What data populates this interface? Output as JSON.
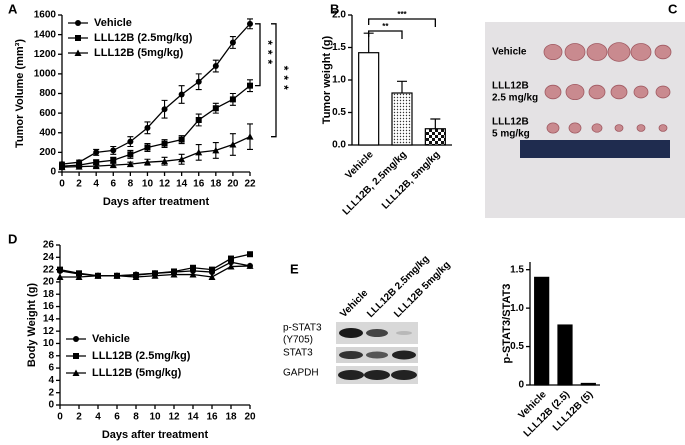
{
  "chart_data": [
    {
      "type": "line",
      "panel": "A",
      "xlabel": "Days after treatment",
      "ylabel": "Tumor Volume (mm³)",
      "x": [
        0,
        2,
        4,
        6,
        8,
        10,
        12,
        14,
        16,
        18,
        20,
        22
      ],
      "xlim": [
        0,
        22
      ],
      "xticks": [
        0,
        2,
        4,
        6,
        8,
        10,
        12,
        14,
        16,
        18,
        20,
        22
      ],
      "ylim": [
        0,
        1600
      ],
      "yticks": [
        0,
        200,
        400,
        600,
        800,
        1000,
        1200,
        1400,
        1600
      ],
      "legend": "upper left",
      "series": [
        {
          "name": "Vehicle",
          "marker": "circle",
          "color": "#000000",
          "values": [
            80,
            100,
            200,
            220,
            310,
            450,
            640,
            790,
            920,
            1080,
            1320,
            1510
          ],
          "errors": [
            20,
            20,
            30,
            40,
            50,
            60,
            90,
            90,
            80,
            60,
            60,
            50
          ]
        },
        {
          "name": "LLL12B (2.5mg/kg)",
          "marker": "square",
          "color": "#000000",
          "values": [
            60,
            70,
            100,
            120,
            180,
            250,
            290,
            330,
            530,
            650,
            740,
            880
          ],
          "errors": [
            15,
            15,
            20,
            30,
            40,
            40,
            40,
            40,
            60,
            50,
            60,
            60
          ]
        },
        {
          "name": "LLL12B (5mg/kg)",
          "marker": "triangle",
          "color": "#000000",
          "values": [
            50,
            55,
            60,
            70,
            80,
            100,
            110,
            130,
            200,
            220,
            280,
            360
          ],
          "errors": [
            10,
            10,
            15,
            20,
            20,
            30,
            40,
            50,
            80,
            80,
            110,
            130
          ]
        }
      ],
      "annotations": [
        "***",
        "***"
      ]
    },
    {
      "type": "bar",
      "panel": "B",
      "ylabel": "Tumor weight (g)",
      "categories": [
        "Vehicle",
        "LLL12B, 2.5mg/kg",
        "LLL12B, 5mg/kg"
      ],
      "values": [
        1.42,
        0.8,
        0.25
      ],
      "errors": [
        0.3,
        0.18,
        0.15
      ],
      "fills": [
        "white",
        "dots",
        "checker"
      ],
      "ylim": [
        0,
        2
      ],
      "yticks": [
        {
          "value": 0,
          "label": "0.0"
        },
        0.5,
        {
          "value": 1,
          "label": "1.0"
        },
        1.5,
        {
          "value": 2,
          "label": "2.0"
        }
      ],
      "annotations": [
        "**",
        "***"
      ]
    },
    {
      "type": "line",
      "panel": "D",
      "xlabel": "Days after treatment",
      "ylabel": "Body Weight (g)",
      "x": [
        0,
        2,
        4,
        6,
        8,
        10,
        12,
        14,
        16,
        18,
        20
      ],
      "xlim": [
        0,
        20
      ],
      "xticks": [
        0,
        2,
        4,
        6,
        8,
        10,
        12,
        14,
        16,
        18,
        20
      ],
      "ylim": [
        0,
        26
      ],
      "yticks": [
        0,
        2,
        4,
        6,
        8,
        10,
        12,
        14,
        16,
        18,
        20,
        22,
        24,
        26
      ],
      "legend": "lower left",
      "series": [
        {
          "name": "Vehicle",
          "marker": "circle",
          "color": "#000000",
          "values": [
            21.8,
            21.3,
            21.0,
            21.0,
            21.2,
            21.4,
            21.6,
            21.8,
            21.6,
            23.2,
            22.6
          ]
        },
        {
          "name": "LLL12B (2.5mg/kg)",
          "marker": "square",
          "color": "#000000",
          "values": [
            22.0,
            21.4,
            21.0,
            21.0,
            21.1,
            21.4,
            21.7,
            22.3,
            22.0,
            23.8,
            24.5
          ]
        },
        {
          "name": "LLL12B (5mg/kg)",
          "marker": "triangle",
          "color": "#000000",
          "values": [
            20.8,
            20.8,
            21.0,
            21.0,
            20.8,
            21.0,
            21.2,
            21.2,
            20.8,
            22.5,
            22.6
          ]
        }
      ]
    },
    {
      "type": "bar",
      "ylabel": "p-STAT3/STAT3",
      "categories": [
        "Vehicle",
        "LLL12B (2.5)",
        "LLL12B (5)"
      ],
      "values": [
        1.4,
        0.78,
        0.02
      ],
      "fills": [
        "#000000",
        "#000000",
        "#000000"
      ],
      "ylim": [
        0,
        1.6
      ],
      "yticks": [
        0,
        0.5,
        {
          "value": 1,
          "label": "1.0"
        },
        1.5
      ]
    }
  ],
  "photo": {
    "panel": "C",
    "labels": [
      [
        "Vehicle"
      ],
      [
        "LLL12B",
        "2.5 mg/kg"
      ],
      [
        "LLL12B",
        "5 mg/kg"
      ]
    ]
  },
  "blot": {
    "panel": "E",
    "lanes": [
      "Vehicle",
      "LLL12B 2.5mg/kg",
      "LLL12B 5mg/kg"
    ],
    "rows": [
      [
        "p-STAT3",
        "(Y705)"
      ],
      [
        "STAT3"
      ],
      [
        "GAPDH"
      ]
    ]
  }
}
